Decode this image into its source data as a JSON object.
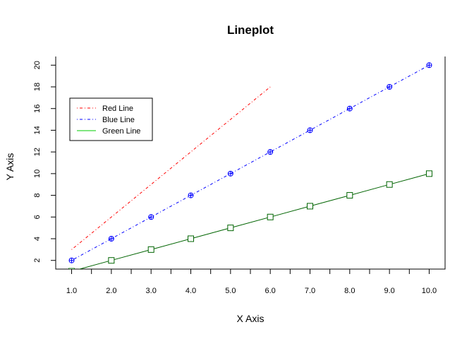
{
  "chart_data": {
    "type": "line",
    "title": "Lineplot",
    "xlabel": "X Axis",
    "ylabel": "Y Axis",
    "xlim": [
      0.6,
      10.4
    ],
    "ylim": [
      1.2,
      20.8
    ],
    "x_ticks": [
      1,
      1.5,
      2,
      2.5,
      3,
      3.5,
      4,
      4.5,
      5,
      5.5,
      6,
      6.5,
      7,
      7.5,
      8,
      8.5,
      9,
      9.5,
      10
    ],
    "x_tick_labels": [
      "1.0",
      "",
      "2.0",
      "",
      "3.0",
      "",
      "4.0",
      "",
      "5.0",
      "",
      "6.0",
      "",
      "7.0",
      "",
      "8.0",
      "",
      "9.0",
      "",
      "10.0"
    ],
    "y_ticks": [
      2,
      4,
      6,
      8,
      10,
      12,
      14,
      16,
      18,
      20
    ],
    "y_tick_labels": [
      "2",
      "4",
      "6",
      "8",
      "10",
      "12",
      "14",
      "16",
      "18",
      "20"
    ],
    "grid": false,
    "legend_position": "top-left",
    "series": [
      {
        "name": "Red Line",
        "color": "#ff0000",
        "line_style": "dotdash",
        "marker": "none",
        "x": [
          1,
          2,
          3,
          4,
          5,
          6
        ],
        "y": [
          3,
          6,
          9,
          12,
          15,
          18
        ]
      },
      {
        "name": "Blue Line",
        "color": "#0000ff",
        "line_style": "dotdash",
        "marker": "circle-plus",
        "x": [
          1,
          2,
          3,
          4,
          5,
          6,
          7,
          8,
          9,
          10
        ],
        "y": [
          2,
          4,
          6,
          8,
          10,
          12,
          14,
          16,
          18,
          20
        ]
      },
      {
        "name": "Green Line",
        "color": "#006400",
        "legend_color": "#00cc00",
        "line_style": "solid",
        "marker": "square",
        "x": [
          1,
          2,
          3,
          4,
          5,
          6,
          7,
          8,
          9,
          10
        ],
        "y": [
          1,
          2,
          3,
          4,
          5,
          6,
          7,
          8,
          9,
          10
        ]
      }
    ]
  }
}
